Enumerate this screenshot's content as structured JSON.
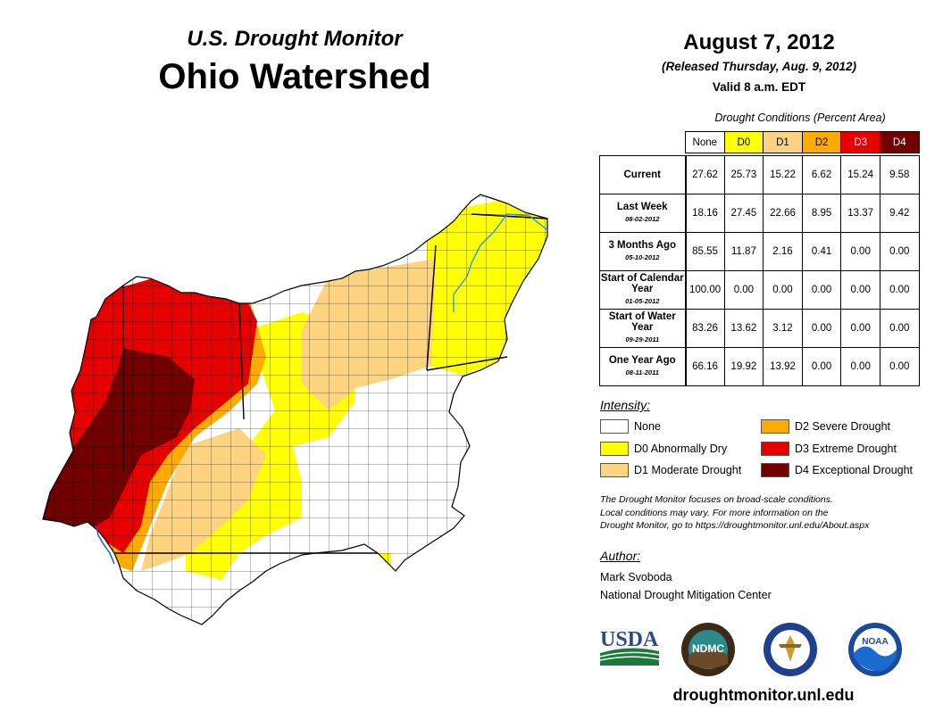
{
  "header": {
    "subtitle": "U.S. Drought Monitor",
    "title": "Ohio Watershed",
    "date": "August 7, 2012",
    "released": "(Released Thursday, Aug. 9, 2012)",
    "valid": "Valid 8 a.m. EDT"
  },
  "table": {
    "caption": "Drought Conditions (Percent Area)",
    "columns": [
      "None",
      "D0",
      "D1",
      "D2",
      "D3",
      "D4"
    ],
    "column_colors": [
      "#ffffff",
      "#ffff00",
      "#fcd37f",
      "#ffaa00",
      "#e60000",
      "#730000"
    ],
    "rows": [
      {
        "label": "Current",
        "date": "",
        "values": [
          "27.62",
          "25.73",
          "15.22",
          "6.62",
          "15.24",
          "9.58"
        ]
      },
      {
        "label": "Last Week",
        "date": "08-02-2012",
        "values": [
          "18.16",
          "27.45",
          "22.66",
          "8.95",
          "13.37",
          "9.42"
        ]
      },
      {
        "label": "3 Months Ago",
        "date": "05-10-2012",
        "values": [
          "85.55",
          "11.87",
          "2.16",
          "0.41",
          "0.00",
          "0.00"
        ]
      },
      {
        "label": "Start of Calendar Year",
        "date": "01-05-2012",
        "values": [
          "100.00",
          "0.00",
          "0.00",
          "0.00",
          "0.00",
          "0.00"
        ]
      },
      {
        "label": "Start of Water Year",
        "date": "09-29-2011",
        "values": [
          "83.26",
          "13.62",
          "3.12",
          "0.00",
          "0.00",
          "0.00"
        ]
      },
      {
        "label": "One Year Ago",
        "date": "08-11-2011",
        "values": [
          "66.16",
          "19.92",
          "13.92",
          "0.00",
          "0.00",
          "0.00"
        ]
      }
    ]
  },
  "legend": {
    "title": "Intensity:",
    "items": [
      {
        "label": "None",
        "color": "#ffffff"
      },
      {
        "label": "D0 Abnormally Dry",
        "color": "#ffff00"
      },
      {
        "label": "D1 Moderate Drought",
        "color": "#fcd37f"
      },
      {
        "label": "D2 Severe Drought",
        "color": "#ffaa00"
      },
      {
        "label": "D3 Extreme Drought",
        "color": "#e60000"
      },
      {
        "label": "D4 Exceptional Drought",
        "color": "#730000"
      }
    ]
  },
  "note": {
    "line1": "The Drought Monitor focuses on broad-scale conditions.",
    "line2": "Local conditions may vary. For more information on the",
    "line3": "Drought Monitor, go to https://droughtmonitor.unl.edu/About.aspx"
  },
  "author": {
    "title": "Author:",
    "name": "Mark Svoboda",
    "org": "National Drought Mitigation Center"
  },
  "logos": {
    "usda": "USDA",
    "ndmc": "NDMC",
    "noaa": "NOAA"
  },
  "footer": {
    "site": "droughtmonitor.unl.edu"
  }
}
